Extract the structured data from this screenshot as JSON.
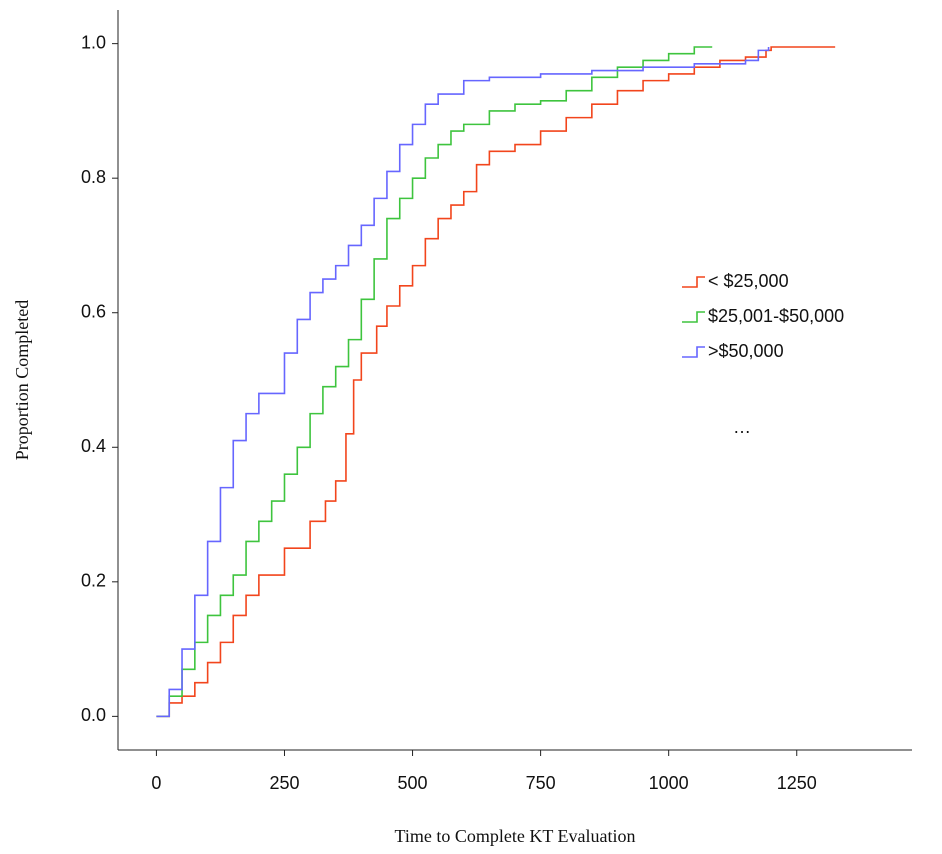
{
  "chart_data": {
    "type": "step",
    "x_label": "Time to Complete KT Evaluation",
    "y_label": "Proportion Completed",
    "annotation": "…",
    "xlim": [
      -75,
      1475
    ],
    "ylim": [
      -0.05,
      1.05
    ],
    "xticks": [
      0,
      250,
      500,
      750,
      1000,
      1250
    ],
    "yticks": [
      {
        "value": 0,
        "label": "0.0"
      },
      {
        "value": 0.2,
        "label": "0.2"
      },
      {
        "value": 0.4,
        "label": "0.4"
      },
      {
        "value": 0.6,
        "label": "0.6"
      },
      {
        "value": 0.8,
        "label": "0.8"
      },
      {
        "value": 1,
        "label": "1.0"
      }
    ],
    "legend": "right",
    "series": [
      {
        "name": "< $25,000",
        "color": "#f2451c",
        "x": [
          0,
          25,
          50,
          75,
          100,
          125,
          150,
          175,
          200,
          250,
          300,
          330,
          350,
          370,
          385,
          400,
          430,
          450,
          475,
          500,
          525,
          550,
          575,
          600,
          625,
          650,
          700,
          750,
          800,
          850,
          900,
          950,
          1000,
          1050,
          1100,
          1150,
          1190,
          1200,
          1325
        ],
        "values": [
          0,
          0.02,
          0.03,
          0.05,
          0.08,
          0.11,
          0.15,
          0.18,
          0.21,
          0.25,
          0.29,
          0.32,
          0.35,
          0.42,
          0.5,
          0.54,
          0.58,
          0.61,
          0.64,
          0.67,
          0.71,
          0.74,
          0.76,
          0.78,
          0.82,
          0.84,
          0.85,
          0.87,
          0.89,
          0.91,
          0.93,
          0.945,
          0.955,
          0.965,
          0.975,
          0.98,
          0.99,
          0.995,
          0.995
        ]
      },
      {
        "name": "$25,001-$50,000",
        "color": "#3ec43e",
        "x": [
          0,
          25,
          50,
          75,
          100,
          125,
          150,
          175,
          200,
          225,
          250,
          275,
          300,
          325,
          350,
          375,
          400,
          425,
          450,
          475,
          500,
          525,
          550,
          575,
          600,
          650,
          700,
          750,
          800,
          850,
          900,
          950,
          1000,
          1050,
          1085
        ],
        "values": [
          0,
          0.03,
          0.07,
          0.11,
          0.15,
          0.18,
          0.21,
          0.26,
          0.29,
          0.32,
          0.36,
          0.4,
          0.45,
          0.49,
          0.52,
          0.56,
          0.62,
          0.68,
          0.74,
          0.77,
          0.8,
          0.83,
          0.85,
          0.87,
          0.88,
          0.9,
          0.91,
          0.915,
          0.93,
          0.95,
          0.965,
          0.975,
          0.985,
          0.995,
          0.995
        ]
      },
      {
        "name": ">$50,000",
        "color": "#6666ff",
        "x": [
          0,
          25,
          50,
          75,
          100,
          125,
          150,
          175,
          200,
          250,
          275,
          300,
          325,
          350,
          375,
          400,
          425,
          450,
          475,
          500,
          525,
          550,
          600,
          650,
          750,
          850,
          950,
          1050,
          1150,
          1175,
          1195
        ],
        "values": [
          0,
          0.04,
          0.1,
          0.18,
          0.26,
          0.34,
          0.41,
          0.45,
          0.48,
          0.54,
          0.59,
          0.63,
          0.65,
          0.67,
          0.7,
          0.73,
          0.77,
          0.81,
          0.85,
          0.88,
          0.91,
          0.925,
          0.945,
          0.95,
          0.955,
          0.96,
          0.965,
          0.97,
          0.975,
          0.99,
          0.995
        ]
      }
    ]
  }
}
